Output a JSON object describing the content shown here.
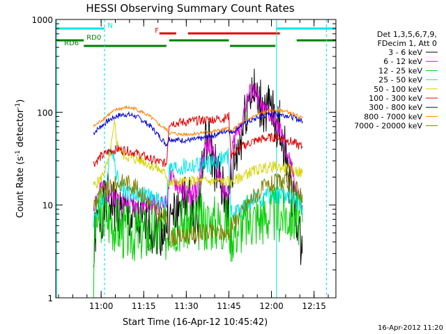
{
  "chart_data": {
    "type": "line",
    "title": "HESSI Observing Summary Count Rates",
    "xlabel": "Start Time (16-Apr-12 10:45:42)",
    "ylabel": "Count Rate (s",
    "ylabel_sup": "-1",
    "ylabel_mid": " detector",
    "ylabel_end": ")",
    "yscale": "log",
    "ylim": [
      1,
      1000
    ],
    "xlim": [
      0,
      100
    ],
    "x_ticks": [
      {
        "x": 16.2,
        "label": "11:00"
      },
      {
        "x": 31.4,
        "label": "11:15"
      },
      {
        "x": 46.6,
        "label": "11:30"
      },
      {
        "x": 61.8,
        "label": "11:45"
      },
      {
        "x": 77.0,
        "label": "12:00"
      },
      {
        "x": 92.2,
        "label": "12:15"
      }
    ],
    "y_ticks": [
      {
        "y": 1,
        "label": "1"
      },
      {
        "y": 10,
        "label": "10"
      },
      {
        "y": 100,
        "label": "100"
      },
      {
        "y": 1000,
        "label": "1000"
      }
    ],
    "legend_header": [
      "Det 1,3,5,6,7,9,",
      "FDecim 1, Att 0"
    ],
    "legend_placement": "right",
    "footer_date": "16-Apr-2012 11:20",
    "flags": [
      {
        "label": "N",
        "color": "#00e5e5",
        "label_x": 18.5,
        "level": 1,
        "segments": [
          [
            0,
            17.4
          ],
          [
            78.8,
            100
          ]
        ]
      },
      {
        "label": "F",
        "color": "#e00000",
        "label_x": 35.4,
        "level": 2,
        "segments": [
          [
            37,
            43
          ],
          [
            47.2,
            80
          ]
        ]
      },
      {
        "label": "RD0",
        "color": "#008000",
        "label_x": 11,
        "level": 3,
        "segments": [
          [
            0,
            10
          ],
          [
            40.5,
            61.8
          ],
          [
            86,
            100
          ]
        ]
      },
      {
        "label": "RD6",
        "color": "#008000",
        "label_x": 3,
        "level": 4,
        "segments": [
          [
            10,
            39.5
          ],
          [
            62.2,
            78.4
          ]
        ]
      }
    ],
    "vlines": [
      {
        "x": 0.3,
        "dashed": false
      },
      {
        "x": 17.4,
        "dashed": true
      },
      {
        "x": 78.8,
        "dashed": false
      },
      {
        "x": 96.6,
        "dashed": true
      }
    ],
    "series": [
      {
        "name": "3 - 6 keV",
        "color": "#000000",
        "noise": 0.3,
        "seed": 1,
        "points": [
          [
            13.5,
            2
          ],
          [
            14,
            5
          ],
          [
            16,
            8
          ],
          [
            19,
            12
          ],
          [
            21,
            9
          ],
          [
            24,
            8
          ],
          [
            27,
            7
          ],
          [
            30,
            6
          ],
          [
            34,
            6
          ],
          [
            38,
            5.5
          ],
          [
            39.5,
            6
          ],
          [
            40.5,
            6.5
          ],
          [
            43,
            8
          ],
          [
            45,
            10
          ],
          [
            47,
            12
          ],
          [
            49,
            8
          ],
          [
            50.5,
            7
          ],
          [
            52,
            20
          ],
          [
            53,
            35
          ],
          [
            54,
            50
          ],
          [
            55,
            40
          ],
          [
            57,
            25
          ],
          [
            59,
            15
          ],
          [
            61,
            10
          ],
          [
            61.8,
            9
          ],
          [
            62.5,
            18
          ],
          [
            64,
            30
          ],
          [
            66,
            50
          ],
          [
            67,
            70
          ],
          [
            68,
            110
          ],
          [
            70,
            180
          ],
          [
            71,
            150
          ],
          [
            72,
            130
          ],
          [
            74,
            110
          ],
          [
            76,
            100
          ],
          [
            78,
            90
          ],
          [
            80,
            70
          ],
          [
            82,
            35
          ],
          [
            84,
            15
          ],
          [
            86,
            8
          ],
          [
            87,
            4.5
          ],
          [
            88,
            3
          ]
        ]
      },
      {
        "name": "6 - 12 keV",
        "color": "#e100e1",
        "noise": 0.12,
        "seed": 2,
        "points": [
          [
            13.5,
            10
          ],
          [
            16,
            15
          ],
          [
            18,
            14
          ],
          [
            20,
            13
          ],
          [
            22,
            12
          ],
          [
            25,
            11
          ],
          [
            28,
            10
          ],
          [
            31,
            10
          ],
          [
            34,
            10
          ],
          [
            37,
            10
          ],
          [
            39.5,
            10
          ],
          [
            40.5,
            19
          ],
          [
            42,
            18
          ],
          [
            44,
            16
          ],
          [
            46,
            14
          ],
          [
            48,
            12
          ],
          [
            50,
            14
          ],
          [
            52,
            25
          ],
          [
            54,
            45
          ],
          [
            56,
            40
          ],
          [
            58,
            22
          ],
          [
            60,
            15
          ],
          [
            61.8,
            12
          ],
          [
            62.5,
            30
          ],
          [
            64,
            55
          ],
          [
            66,
            75
          ],
          [
            67,
            100
          ],
          [
            69,
            150
          ],
          [
            71,
            170
          ],
          [
            72,
            140
          ],
          [
            74,
            105
          ],
          [
            76,
            95
          ],
          [
            78,
            85
          ],
          [
            80,
            65
          ],
          [
            82,
            40
          ],
          [
            84,
            25
          ],
          [
            86,
            15
          ],
          [
            88,
            10
          ]
        ]
      },
      {
        "name": "12 - 25 keV",
        "color": "#00d000",
        "noise": 0.32,
        "seed": 3,
        "points": [
          [
            13.5,
            1
          ],
          [
            14,
            6
          ],
          [
            16,
            8
          ],
          [
            19,
            7
          ],
          [
            22,
            6
          ],
          [
            25,
            5
          ],
          [
            29,
            5
          ],
          [
            33,
            5
          ],
          [
            36,
            5
          ],
          [
            39.5,
            5
          ],
          [
            40.5,
            6.5
          ],
          [
            44,
            6.5
          ],
          [
            48,
            6.5
          ],
          [
            52,
            6.5
          ],
          [
            56,
            6.5
          ],
          [
            61.8,
            6.5
          ],
          [
            62.5,
            5
          ],
          [
            66,
            6
          ],
          [
            70,
            7
          ],
          [
            74,
            7.5
          ],
          [
            78,
            8
          ],
          [
            82,
            8
          ],
          [
            86,
            7.5
          ],
          [
            88,
            6.5
          ]
        ]
      },
      {
        "name": "25 - 50 keV",
        "color": "#00e5e5",
        "noise": 0.1,
        "seed": 4,
        "points": [
          [
            13.5,
            7
          ],
          [
            16,
            10
          ],
          [
            18,
            14
          ],
          [
            19,
            30
          ],
          [
            20,
            45
          ],
          [
            21,
            30
          ],
          [
            22,
            20
          ],
          [
            24,
            15
          ],
          [
            27,
            13
          ],
          [
            30,
            13
          ],
          [
            34,
            12
          ],
          [
            37,
            11
          ],
          [
            39.5,
            11
          ],
          [
            40.5,
            24
          ],
          [
            44,
            25
          ],
          [
            48,
            26
          ],
          [
            52,
            27
          ],
          [
            56,
            28
          ],
          [
            58,
            30
          ],
          [
            60,
            32
          ],
          [
            61.8,
            33
          ],
          [
            62.5,
            8
          ],
          [
            66,
            9
          ],
          [
            70,
            11
          ],
          [
            74,
            12
          ],
          [
            78,
            13
          ],
          [
            82,
            12.5
          ],
          [
            86,
            11
          ],
          [
            88,
            9
          ]
        ]
      },
      {
        "name": "50 - 100 keV",
        "color": "#d4d400",
        "noise": 0.06,
        "seed": 5,
        "points": [
          [
            13.5,
            16
          ],
          [
            16,
            19
          ],
          [
            19,
            30
          ],
          [
            21,
            75
          ],
          [
            22,
            45
          ],
          [
            24,
            35
          ],
          [
            27,
            32
          ],
          [
            31,
            30
          ],
          [
            34,
            27
          ],
          [
            37,
            24
          ],
          [
            39.5,
            21
          ],
          [
            40.5,
            17
          ],
          [
            44,
            17.5
          ],
          [
            48,
            18
          ],
          [
            52,
            18
          ],
          [
            56,
            18
          ],
          [
            61.8,
            18
          ],
          [
            62.5,
            17
          ],
          [
            66,
            20
          ],
          [
            70,
            23
          ],
          [
            74,
            25
          ],
          [
            78,
            26
          ],
          [
            82,
            25
          ],
          [
            86,
            23
          ],
          [
            88,
            22
          ]
        ]
      },
      {
        "name": "100 - 300 keV",
        "color": "#e00000",
        "noise": 0.05,
        "seed": 6,
        "points": [
          [
            13.5,
            28
          ],
          [
            16,
            33
          ],
          [
            19,
            38
          ],
          [
            22,
            40
          ],
          [
            25,
            39
          ],
          [
            28,
            37
          ],
          [
            31,
            34
          ],
          [
            34,
            31
          ],
          [
            37,
            29
          ],
          [
            39.5,
            28
          ],
          [
            40.5,
            77
          ],
          [
            44,
            77
          ],
          [
            48,
            80
          ],
          [
            52,
            82
          ],
          [
            56,
            84
          ],
          [
            60,
            86
          ],
          [
            61.8,
            90
          ],
          [
            62.5,
            34
          ],
          [
            66,
            42
          ],
          [
            70,
            48
          ],
          [
            74,
            52
          ],
          [
            78,
            54
          ],
          [
            80,
            53
          ],
          [
            83,
            50
          ],
          [
            86,
            45
          ],
          [
            88,
            42
          ]
        ]
      },
      {
        "name": "300 - 800 keV",
        "color": "#0000d0",
        "noise": 0.03,
        "seed": 7,
        "points": [
          [
            13.5,
            60
          ],
          [
            16,
            70
          ],
          [
            19,
            82
          ],
          [
            22,
            92
          ],
          [
            25,
            95
          ],
          [
            28,
            92
          ],
          [
            31,
            82
          ],
          [
            34,
            70
          ],
          [
            37,
            55
          ],
          [
            39.5,
            45
          ],
          [
            40.5,
            52
          ],
          [
            44,
            50
          ],
          [
            48,
            50
          ],
          [
            52,
            52
          ],
          [
            56,
            56
          ],
          [
            60,
            62
          ],
          [
            61.8,
            65
          ],
          [
            62.5,
            60
          ],
          [
            66,
            72
          ],
          [
            70,
            82
          ],
          [
            74,
            92
          ],
          [
            78,
            95
          ],
          [
            80,
            95
          ],
          [
            83,
            92
          ],
          [
            86,
            85
          ],
          [
            88,
            80
          ]
        ]
      },
      {
        "name": "800 - 7000 keV",
        "color": "#ff8000",
        "noise": 0.02,
        "seed": 8,
        "points": [
          [
            13.5,
            70
          ],
          [
            16,
            80
          ],
          [
            19,
            95
          ],
          [
            22,
            108
          ],
          [
            25,
            112
          ],
          [
            28,
            110
          ],
          [
            31,
            100
          ],
          [
            34,
            88
          ],
          [
            37,
            73
          ],
          [
            39.5,
            65
          ],
          [
            40.5,
            60
          ],
          [
            44,
            58
          ],
          [
            48,
            58
          ],
          [
            52,
            60
          ],
          [
            56,
            62
          ],
          [
            60,
            65
          ],
          [
            61.8,
            67
          ],
          [
            62.5,
            62
          ],
          [
            66,
            75
          ],
          [
            70,
            88
          ],
          [
            74,
            100
          ],
          [
            78,
            105
          ],
          [
            80,
            106
          ],
          [
            83,
            100
          ],
          [
            86,
            92
          ],
          [
            88,
            86
          ]
        ]
      },
      {
        "name": "7000 - 20000 keV",
        "color": "#808000",
        "noise": 0.1,
        "seed": 9,
        "points": [
          [
            13.5,
            10
          ],
          [
            16,
            13
          ],
          [
            19,
            15
          ],
          [
            22,
            17
          ],
          [
            25,
            18
          ],
          [
            28,
            16
          ],
          [
            31,
            13
          ],
          [
            34,
            10
          ],
          [
            37,
            8
          ],
          [
            39.5,
            7
          ],
          [
            40.5,
            4.5
          ],
          [
            44,
            4.5
          ],
          [
            48,
            4.8
          ],
          [
            52,
            5
          ],
          [
            56,
            5
          ],
          [
            61.8,
            5
          ],
          [
            62.5,
            6
          ],
          [
            66,
            8
          ],
          [
            70,
            12
          ],
          [
            74,
            15
          ],
          [
            78,
            17
          ],
          [
            80,
            18
          ],
          [
            83,
            17
          ],
          [
            86,
            15
          ],
          [
            88,
            13
          ]
        ]
      }
    ]
  }
}
